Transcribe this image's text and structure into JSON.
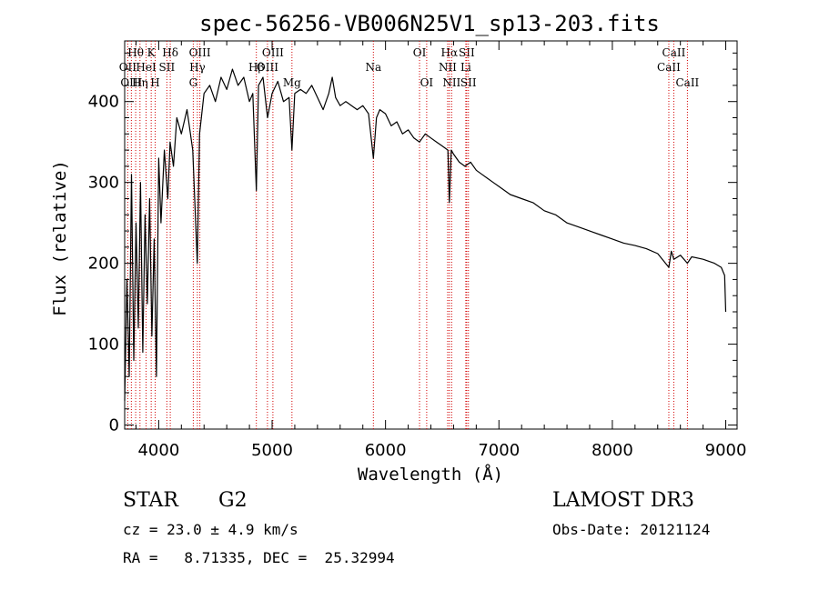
{
  "chart_data": {
    "type": "line",
    "title": "spec-56256-VB006N25V1_sp13-203.fits",
    "xlabel": "Wavelength (Å)",
    "ylabel": "Flux (relative)",
    "xlim": [
      3700,
      9100
    ],
    "ylim": [
      -5,
      475
    ],
    "xticks": [
      4000,
      5000,
      6000,
      7000,
      8000,
      9000
    ],
    "yticks": [
      0,
      100,
      200,
      300,
      400
    ],
    "series": [
      {
        "name": "flux",
        "color": "#000000",
        "x": [
          3700,
          3720,
          3740,
          3760,
          3780,
          3800,
          3820,
          3840,
          3860,
          3880,
          3900,
          3920,
          3940,
          3960,
          3980,
          4000,
          4020,
          4050,
          4080,
          4100,
          4130,
          4160,
          4200,
          4250,
          4300,
          4340,
          4360,
          4400,
          4450,
          4500,
          4550,
          4600,
          4650,
          4700,
          4750,
          4800,
          4830,
          4861,
          4880,
          4920,
          4960,
          5000,
          5050,
          5100,
          5150,
          5175,
          5200,
          5250,
          5300,
          5350,
          5400,
          5450,
          5500,
          5530,
          5560,
          5600,
          5650,
          5700,
          5750,
          5800,
          5850,
          5893,
          5920,
          5950,
          6000,
          6050,
          6100,
          6150,
          6200,
          6250,
          6300,
          6350,
          6400,
          6450,
          6500,
          6550,
          6563,
          6580,
          6600,
          6650,
          6700,
          6750,
          6800,
          6850,
          6900,
          6950,
          7000,
          7100,
          7200,
          7300,
          7400,
          7500,
          7600,
          7700,
          7800,
          7900,
          8000,
          8100,
          8200,
          8300,
          8400,
          8498,
          8520,
          8542,
          8600,
          8662,
          8700,
          8800,
          8900,
          8960,
          8990,
          9000
        ],
        "values": [
          30,
          180,
          60,
          310,
          80,
          250,
          120,
          300,
          90,
          260,
          150,
          280,
          110,
          230,
          60,
          330,
          250,
          340,
          280,
          350,
          320,
          380,
          360,
          390,
          340,
          200,
          360,
          410,
          420,
          400,
          430,
          415,
          440,
          420,
          430,
          400,
          410,
          290,
          420,
          430,
          380,
          410,
          425,
          400,
          405,
          340,
          410,
          415,
          410,
          420,
          405,
          390,
          410,
          430,
          405,
          395,
          400,
          395,
          390,
          395,
          385,
          330,
          380,
          390,
          385,
          370,
          375,
          360,
          365,
          355,
          350,
          360,
          355,
          350,
          345,
          340,
          275,
          340,
          335,
          325,
          320,
          325,
          315,
          310,
          305,
          300,
          295,
          285,
          280,
          275,
          265,
          260,
          250,
          245,
          240,
          235,
          230,
          225,
          222,
          218,
          212,
          195,
          215,
          205,
          210,
          200,
          208,
          205,
          200,
          195,
          185,
          140
        ]
      }
    ],
    "line_markers": [
      {
        "label": "Hθ",
        "x": 3797,
        "row": 1,
        "color": "#d20000"
      },
      {
        "label": "OII",
        "x": 3727,
        "row": 2,
        "color": "#d20000"
      },
      {
        "label": "OIII",
        "x": 3759,
        "row": 3,
        "color": "#d20000"
      },
      {
        "label": "K",
        "x": 3934,
        "row": 1,
        "color": "#d20000"
      },
      {
        "label": "HeI",
        "x": 3889,
        "row": 2,
        "color": "#d20000"
      },
      {
        "label": "Hη",
        "x": 3835,
        "row": 3,
        "color": "#d20000"
      },
      {
        "label": "Hδ",
        "x": 4102,
        "row": 1,
        "color": "#d20000"
      },
      {
        "label": "SII",
        "x": 4072,
        "row": 2,
        "color": "#d20000"
      },
      {
        "label": "H",
        "x": 3969,
        "row": 3,
        "color": "#d20000"
      },
      {
        "label": "OIII",
        "x": 4363,
        "row": 1,
        "color": "#d20000"
      },
      {
        "label": "Hγ",
        "x": 4341,
        "row": 2,
        "color": "#d20000"
      },
      {
        "label": "G",
        "x": 4305,
        "row": 3,
        "color": "#d20000"
      },
      {
        "label": "OIII",
        "x": 5007,
        "row": 1,
        "color": "#d20000"
      },
      {
        "label": "OIII",
        "x": 4959,
        "row": 2,
        "color": "#d20000"
      },
      {
        "label": "Hβ",
        "x": 4861,
        "row": 2,
        "color": "#d20000"
      },
      {
        "label": "Mg",
        "x": 5175,
        "row": 3,
        "color": "#d20000"
      },
      {
        "label": "Na",
        "x": 5893,
        "row": 2,
        "color": "#d20000"
      },
      {
        "label": "OI",
        "x": 6300,
        "row": 1,
        "color": "#d20000"
      },
      {
        "label": "OI",
        "x": 6363,
        "row": 3,
        "color": "#d20000"
      },
      {
        "label": "Hα",
        "x": 6563,
        "row": 1,
        "color": "#d20000"
      },
      {
        "label": "SII",
        "x": 6716,
        "row": 1,
        "color": "#d20000"
      },
      {
        "label": "NII",
        "x": 6548,
        "row": 2,
        "color": "#d20000"
      },
      {
        "label": "Li",
        "x": 6708,
        "row": 2,
        "color": "#d20000"
      },
      {
        "label": "NII",
        "x": 6583,
        "row": 3,
        "color": "#d20000"
      },
      {
        "label": "SII",
        "x": 6731,
        "row": 3,
        "color": "#d20000"
      },
      {
        "label": "CaII",
        "x": 8542,
        "row": 1,
        "color": "#d20000"
      },
      {
        "label": "CaII",
        "x": 8498,
        "row": 2,
        "color": "#d20000"
      },
      {
        "label": "CaII",
        "x": 8662,
        "row": 3,
        "color": "#d20000"
      }
    ]
  },
  "info": {
    "class": "STAR",
    "subclass": "G2",
    "survey": "LAMOST DR3",
    "cz": "cz = 23.0 ± 4.9 km/s",
    "obs_date": "Obs-Date: 20121124",
    "radec": "RA =   8.71335, DEC =  25.32994"
  }
}
